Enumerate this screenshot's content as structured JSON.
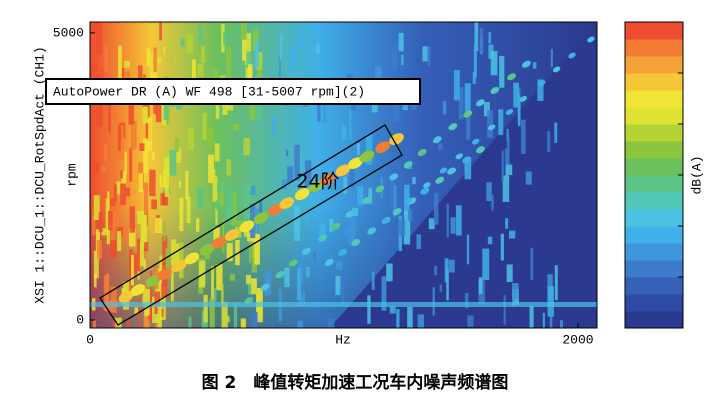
{
  "chart_data": {
    "type": "heatmap",
    "x_label": "Hz",
    "y_label": "XSI 1::DCU_1::DCU_RotSpdAct (CH1)",
    "y_unit": "rpm",
    "xlim": [
      0,
      2078
    ],
    "ylim": [
      -140,
      5190
    ],
    "xticks": [
      0,
      2000
    ],
    "yticks": [
      0,
      5000
    ],
    "colorbar_label": "dB(A)",
    "colormap": [
      "#2b3990",
      "#2e4aa3",
      "#3560b8",
      "#3d7ccb",
      "#3f96dc",
      "#3fb0e8",
      "#4cc3e4",
      "#52c9b8",
      "#5cc487",
      "#6cc05c",
      "#8cc63f",
      "#b5d334",
      "#dde233",
      "#f2e436",
      "#f5c636",
      "#f4a236",
      "#f27c33",
      "#ee4c30"
    ],
    "legend": "AutoPower DR (A) WF 498 [31-5007 rpm](2)",
    "annotation": "24阶"
  },
  "caption": "图 2　峰值转矩加速工况车内噪声频谱图"
}
